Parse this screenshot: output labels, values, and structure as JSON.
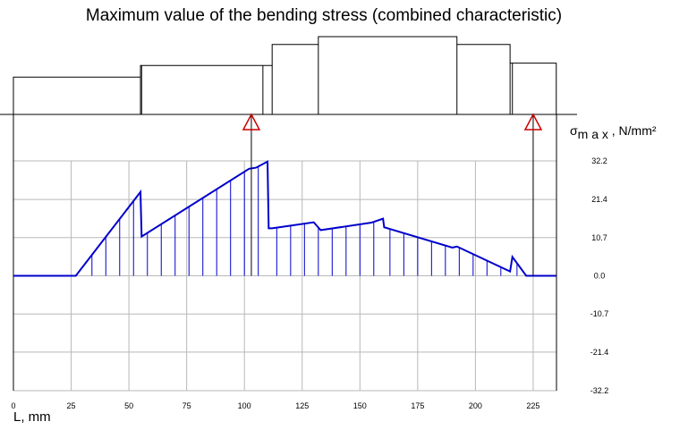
{
  "chart_data": {
    "type": "line",
    "title": "Maximum value of the bending stress (combined characteristic)",
    "xlabel": "L, mm",
    "ylabel_symbol": "σ",
    "ylabel_subscript": "m a x",
    "ylabel_unit": "N/mm²",
    "xlim": [
      0,
      235
    ],
    "ylim": [
      -32.2,
      32.2
    ],
    "x_ticks": [
      0,
      25,
      50,
      75,
      100,
      125,
      150,
      175,
      200,
      225
    ],
    "y_ticks": [
      32.2,
      21.4,
      10.7,
      0.0,
      -10.7,
      -21.4,
      -32.2
    ],
    "y_tick_labels": [
      "32.2",
      "21.4",
      "10.7",
      "0.0",
      "-10.7",
      "-21.4",
      "-32.2"
    ],
    "grid": true,
    "series": [
      {
        "color": "#0000cc",
        "x": [
          0,
          27,
          55,
          55.5,
          102,
          105,
          110,
          110.5,
          112,
          130,
          133,
          155,
          160,
          160.5,
          190,
          192,
          215,
          216,
          222,
          235
        ],
        "y": [
          0,
          0,
          23.5,
          11,
          30,
          30.3,
          32,
          13.3,
          13.3,
          15,
          12.8,
          14.9,
          16,
          13.6,
          7.9,
          8.2,
          1.2,
          5.3,
          0,
          0
        ],
        "hatch_x": [
          34,
          40,
          46,
          52,
          58,
          64,
          70,
          76,
          82,
          88,
          94,
          100,
          106,
          114,
          120,
          126,
          132,
          138,
          144,
          150,
          156,
          163,
          169,
          175,
          181,
          187,
          193,
          199,
          205,
          211,
          218
        ]
      }
    ],
    "supports": {
      "x": [
        103,
        225
      ],
      "color": "#cc0000"
    },
    "shaft_profile": {
      "x": [
        0,
        55,
        55.5,
        108,
        112,
        132,
        192,
        215,
        216,
        235
      ],
      "height_ratio": [
        0.48,
        0.63,
        0.63,
        0.63,
        0.9,
        1.0,
        0.9,
        0.66,
        0.66,
        0.66
      ]
    }
  }
}
